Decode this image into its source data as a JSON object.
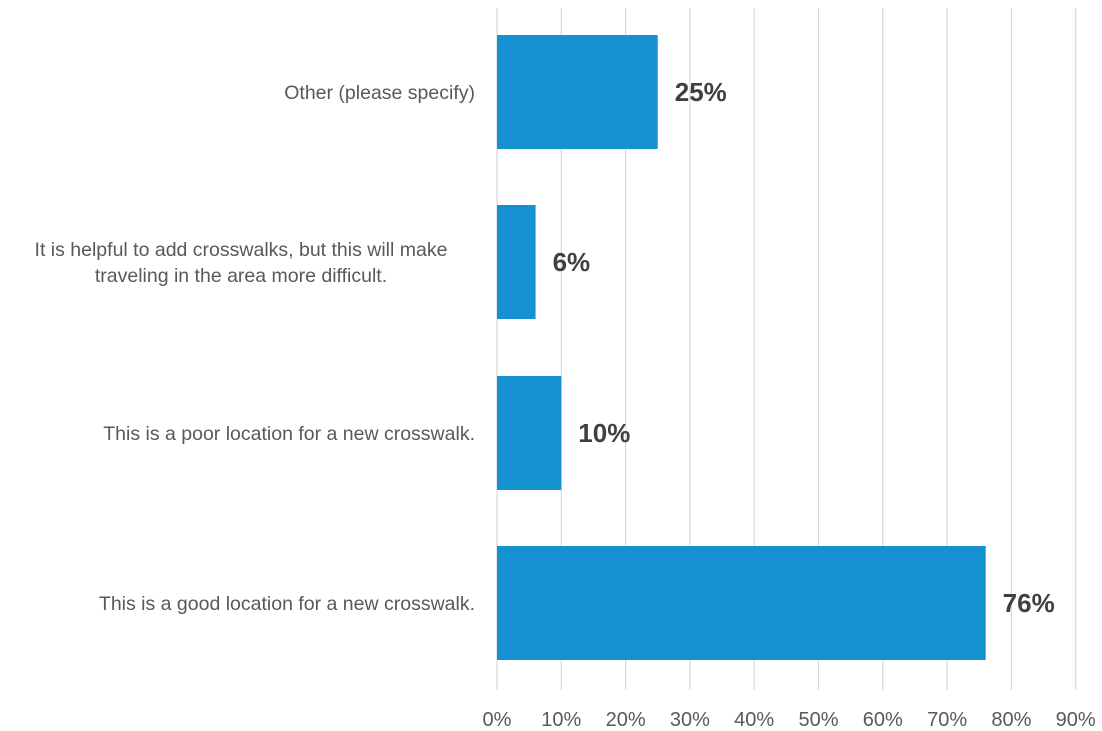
{
  "chart_data": {
    "type": "bar",
    "orientation": "horizontal",
    "title": "",
    "xlabel": "",
    "ylabel": "",
    "categories": [
      [
        "Other (please specify)"
      ],
      [
        "It is helpful to add crosswalks, but this will make",
        "traveling in the area more difficult."
      ],
      [
        "This is a poor location for a new crosswalk."
      ],
      [
        "This is a good location for a new crosswalk."
      ]
    ],
    "values": [
      25,
      6,
      10,
      76
    ],
    "data_labels": [
      "25%",
      "6%",
      "10%",
      "76%"
    ],
    "xlim": [
      0,
      90
    ],
    "x_ticks": [
      0,
      10,
      20,
      30,
      40,
      50,
      60,
      70,
      80,
      90
    ],
    "x_tick_labels": [
      "0%",
      "10%",
      "20%",
      "30%",
      "40%",
      "50%",
      "60%",
      "70%",
      "80%",
      "90%"
    ],
    "grid": "vertical",
    "legend": "none",
    "colors": {
      "bar": "#1591d1",
      "grid": "#d9d9d9",
      "label_text": "#595959",
      "data_label_text": "#404040"
    }
  }
}
